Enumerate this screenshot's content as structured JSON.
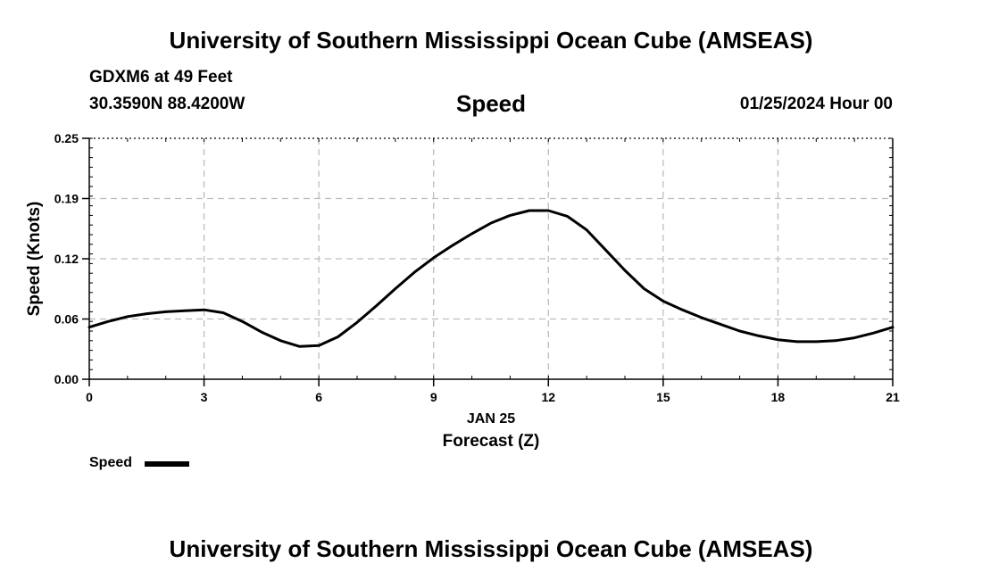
{
  "header": {
    "title": "University of Southern Mississippi Ocean Cube (AMSEAS)",
    "station": "GDXM6 at 49 Feet",
    "coords": "30.3590N  88.4200W",
    "variable": "Speed",
    "datetime": "01/25/2024 Hour 00"
  },
  "footer": {
    "title": "University of Southern Mississippi Ocean Cube (AMSEAS)"
  },
  "legend": {
    "label": "Speed",
    "color": "#000000"
  },
  "chart_data": {
    "type": "line",
    "title": "Speed",
    "xlabel": "Forecast (Z)",
    "xsublabel": "JAN 25",
    "ylabel": "Speed (Knots)",
    "xlim": [
      0,
      21
    ],
    "ylim": [
      0,
      0.25
    ],
    "xticks": [
      0,
      3,
      6,
      9,
      12,
      15,
      18,
      21
    ],
    "xtick_labels": [
      "0",
      "3",
      "6",
      "9",
      "12",
      "15",
      "18",
      "21"
    ],
    "yticks": [
      0,
      0.0625,
      0.125,
      0.1875,
      0.25
    ],
    "ytick_labels": [
      "0.00",
      "0.06",
      "0.12",
      "0.19",
      "0.25"
    ],
    "grid": true,
    "series": [
      {
        "name": "Speed",
        "color": "#000000",
        "x": [
          0,
          0.5,
          1,
          1.5,
          2,
          2.5,
          3,
          3.5,
          4,
          4.5,
          5,
          5.5,
          6,
          6.5,
          7,
          7.5,
          8,
          8.5,
          9,
          9.5,
          10,
          10.5,
          11,
          11.5,
          12,
          12.5,
          13,
          13.5,
          14,
          14.5,
          15,
          15.5,
          16,
          16.5,
          17,
          17.5,
          18,
          18.5,
          19,
          19.5,
          20,
          20.5,
          21
        ],
        "values": [
          0.054,
          0.06,
          0.065,
          0.068,
          0.07,
          0.071,
          0.072,
          0.069,
          0.06,
          0.049,
          0.04,
          0.034,
          0.035,
          0.044,
          0.059,
          0.076,
          0.094,
          0.111,
          0.126,
          0.139,
          0.151,
          0.162,
          0.17,
          0.175,
          0.175,
          0.169,
          0.155,
          0.134,
          0.113,
          0.094,
          0.081,
          0.072,
          0.064,
          0.057,
          0.05,
          0.045,
          0.041,
          0.039,
          0.039,
          0.04,
          0.043,
          0.048,
          0.054
        ]
      }
    ]
  }
}
